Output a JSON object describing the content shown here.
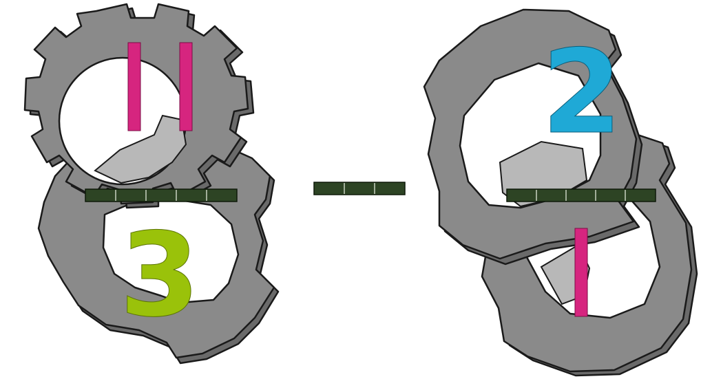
{
  "puzzle": {
    "left": {
      "numerator": {
        "tally_count": 2
      },
      "denominator": {
        "digit": "3"
      },
      "fraction_bar_segments": 5
    },
    "operator": {
      "symbol_segments": 3
    },
    "right": {
      "numerator": {
        "digit": "2"
      },
      "denominator": {
        "tally_count": 1
      },
      "fraction_bar_segments": 5
    }
  },
  "colors": {
    "gear_fill": "#8a8a8a",
    "gear_outline": "#1a1a1a",
    "tally_magenta": "#d6257f",
    "digit_lime": "#9ac20a",
    "digit_cyan": "#1fa9d6",
    "bar_dark_green": "#2d4424"
  }
}
